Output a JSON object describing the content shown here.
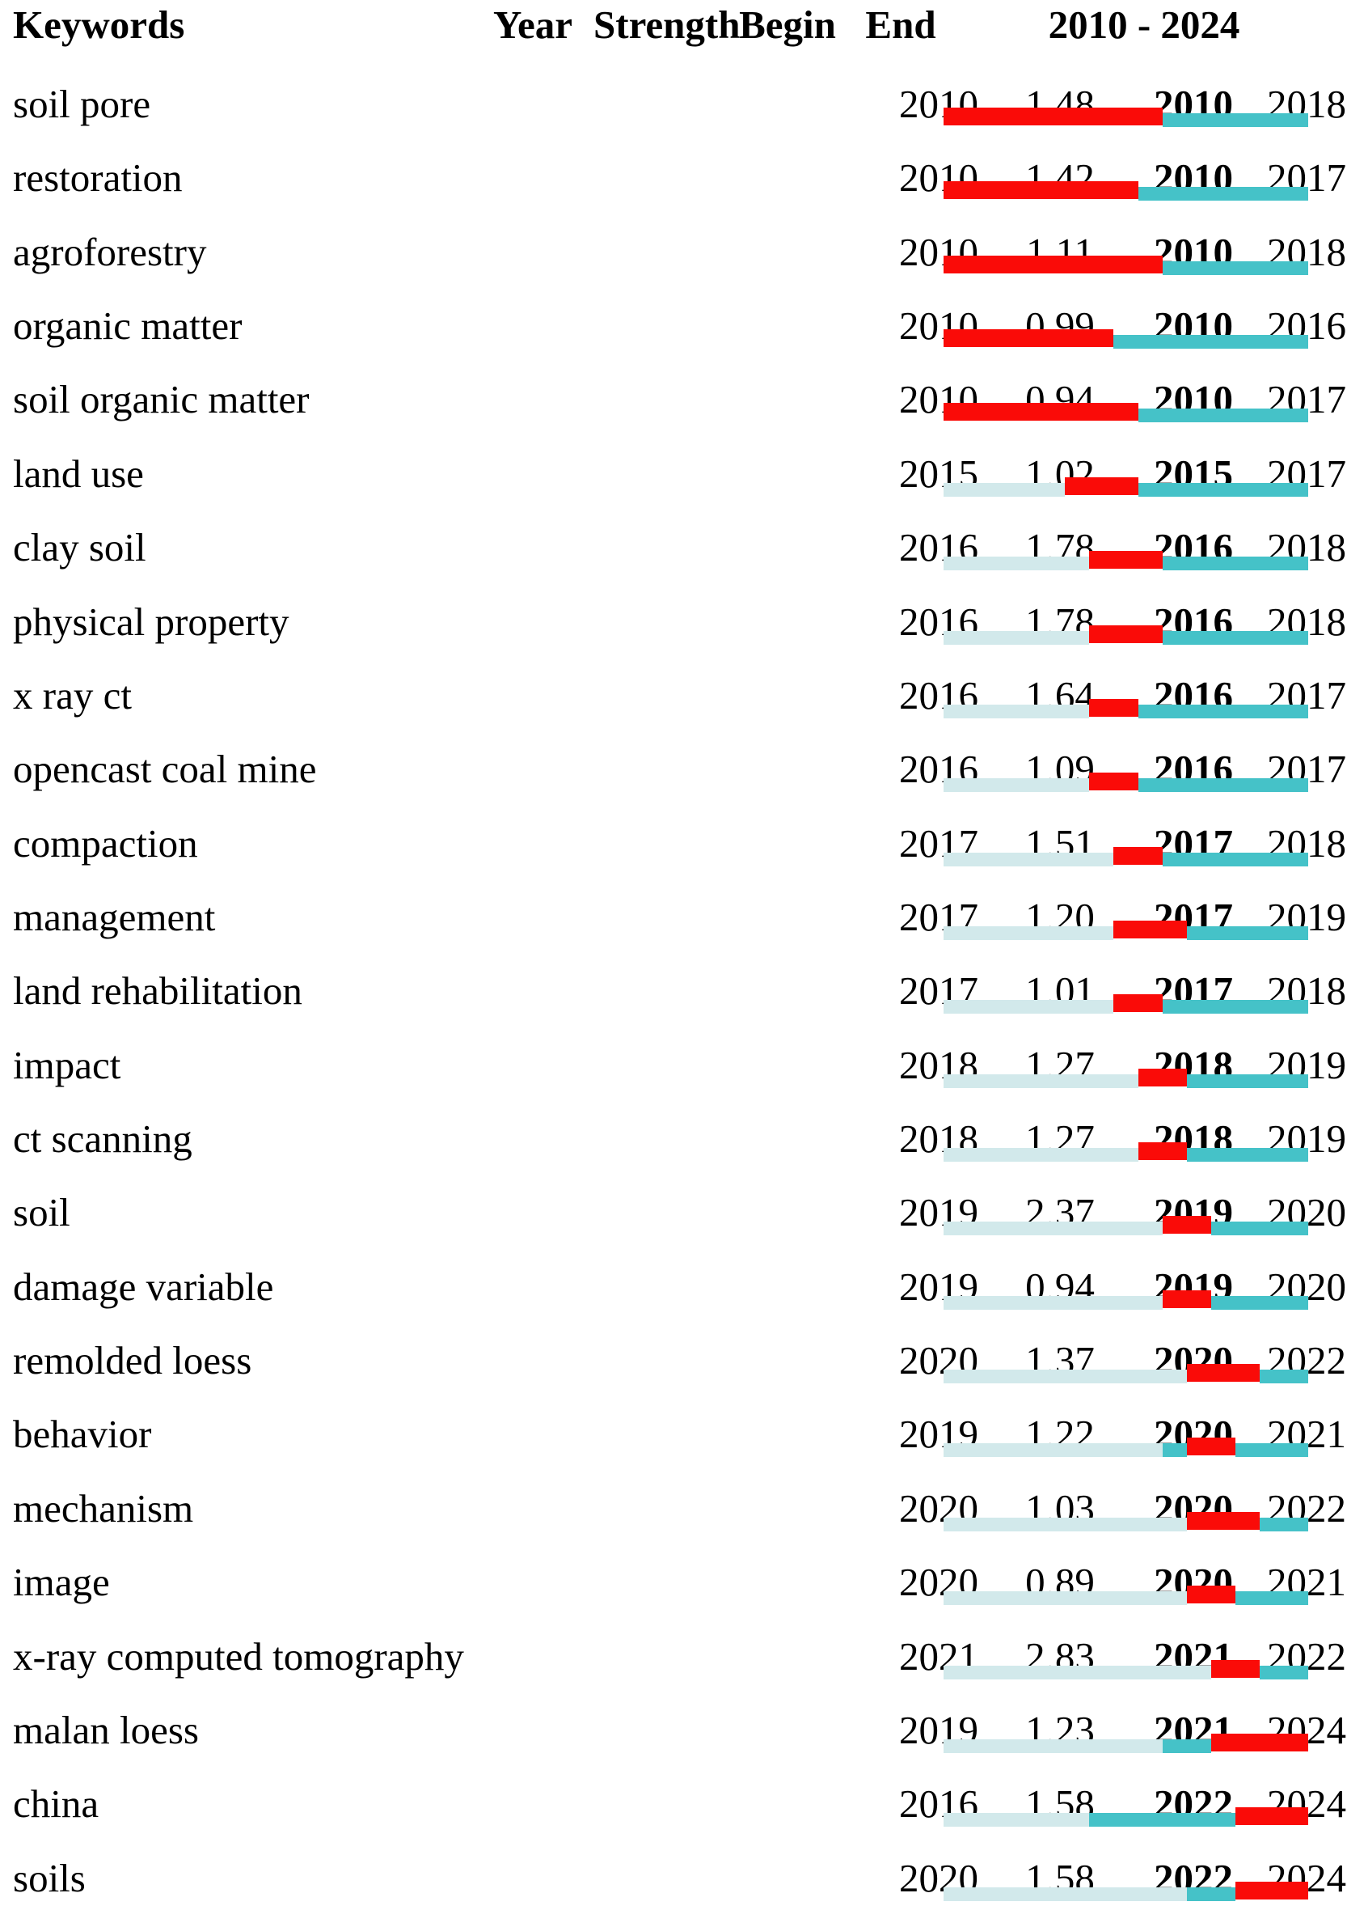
{
  "chart_data": {
    "type": "table",
    "header": {
      "keywords": "Keywords",
      "year": "Year",
      "strength": "Strength",
      "begin": "Begin",
      "end": "End",
      "range": "2010 - 2024"
    },
    "timeline": {
      "min": 2010,
      "max": 2024
    },
    "colors": {
      "burst_red": "#FA0B08",
      "timeline_teal": "#45C2C8",
      "pre_appearance_pale": "#D2E9EB"
    },
    "rows": [
      {
        "keyword": "soil pore",
        "year": "2010",
        "strength": "1.48",
        "begin": "2010",
        "end": "2018"
      },
      {
        "keyword": "restoration",
        "year": "2010",
        "strength": "1.42",
        "begin": "2010",
        "end": "2017"
      },
      {
        "keyword": "agroforestry",
        "year": "2010",
        "strength": "1.11",
        "begin": "2010",
        "end": "2018"
      },
      {
        "keyword": "organic matter",
        "year": "2010",
        "strength": "0.99",
        "begin": "2010",
        "end": "2016"
      },
      {
        "keyword": "soil organic matter",
        "year": "2010",
        "strength": "0.94",
        "begin": "2010",
        "end": "2017"
      },
      {
        "keyword": "land use",
        "year": "2015",
        "strength": "1.02",
        "begin": "2015",
        "end": "2017"
      },
      {
        "keyword": "clay soil",
        "year": "2016",
        "strength": "1.78",
        "begin": "2016",
        "end": "2018"
      },
      {
        "keyword": "physical property",
        "year": "2016",
        "strength": "1.78",
        "begin": "2016",
        "end": "2018"
      },
      {
        "keyword": "x ray ct",
        "year": "2016",
        "strength": "1.64",
        "begin": "2016",
        "end": "2017"
      },
      {
        "keyword": "opencast coal mine",
        "year": "2016",
        "strength": "1.09",
        "begin": "2016",
        "end": "2017"
      },
      {
        "keyword": "compaction",
        "year": "2017",
        "strength": "1.51",
        "begin": "2017",
        "end": "2018"
      },
      {
        "keyword": "management",
        "year": "2017",
        "strength": "1.20",
        "begin": "2017",
        "end": "2019"
      },
      {
        "keyword": "land rehabilitation",
        "year": "2017",
        "strength": "1.01",
        "begin": "2017",
        "end": "2018"
      },
      {
        "keyword": "impact",
        "year": "2018",
        "strength": "1.27",
        "begin": "2018",
        "end": "2019"
      },
      {
        "keyword": "ct scanning",
        "year": "2018",
        "strength": "1.27",
        "begin": "2018",
        "end": "2019"
      },
      {
        "keyword": "soil",
        "year": "2019",
        "strength": "2.37",
        "begin": "2019",
        "end": "2020"
      },
      {
        "keyword": "damage variable",
        "year": "2019",
        "strength": "0.94",
        "begin": "2019",
        "end": "2020"
      },
      {
        "keyword": "remolded loess",
        "year": "2020",
        "strength": "1.37",
        "begin": "2020",
        "end": "2022"
      },
      {
        "keyword": "behavior",
        "year": "2019",
        "strength": "1.22",
        "begin": "2020",
        "end": "2021"
      },
      {
        "keyword": "mechanism",
        "year": "2020",
        "strength": "1.03",
        "begin": "2020",
        "end": "2022"
      },
      {
        "keyword": "image",
        "year": "2020",
        "strength": "0.89",
        "begin": "2020",
        "end": "2021"
      },
      {
        "keyword": "x-ray computed tomography",
        "year": "2021",
        "strength": "2.83",
        "begin": "2021",
        "end": "2022"
      },
      {
        "keyword": "malan loess",
        "year": "2019",
        "strength": "1.23",
        "begin": "2021",
        "end": "2024"
      },
      {
        "keyword": "china",
        "year": "2016",
        "strength": "1.58",
        "begin": "2022",
        "end": "2024"
      },
      {
        "keyword": "soils",
        "year": "2020",
        "strength": "1.58",
        "begin": "2022",
        "end": "2024"
      }
    ]
  }
}
